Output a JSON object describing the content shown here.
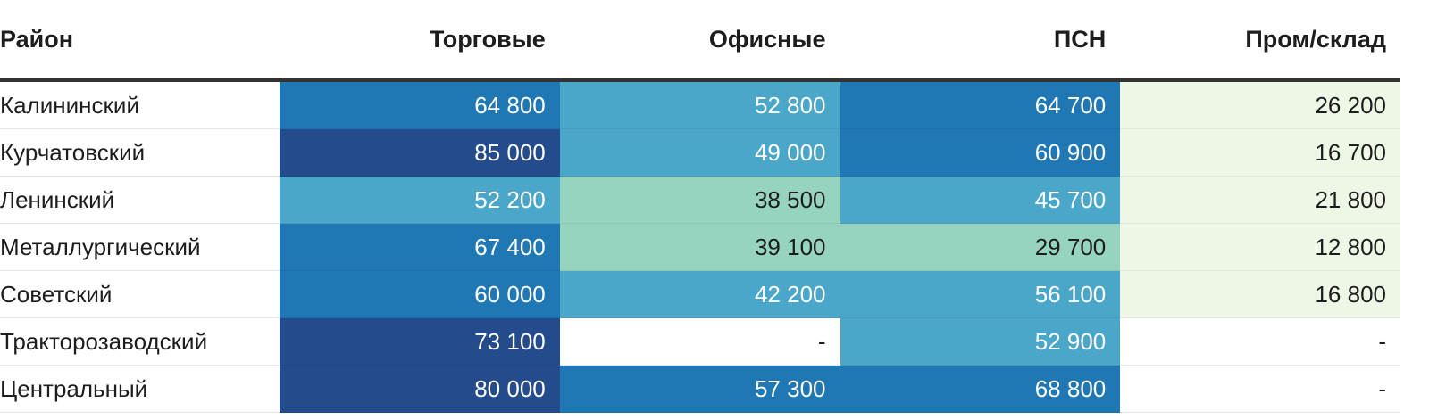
{
  "chart_data": {
    "type": "table",
    "columns": [
      "Район",
      "Торговые",
      "Офисные",
      "ПСН",
      "Пром/склад"
    ],
    "rows": [
      {
        "district": "Калининский",
        "values": [
          "64 800",
          "52 800",
          "64 700",
          "26 200"
        ]
      },
      {
        "district": "Курчатовский",
        "values": [
          "85 000",
          "49 000",
          "60 900",
          "16 700"
        ]
      },
      {
        "district": "Ленинский",
        "values": [
          "52 200",
          "38 500",
          "45 700",
          "21 800"
        ]
      },
      {
        "district": "Металлургический",
        "values": [
          "67 400",
          "39 100",
          "29 700",
          "12 800"
        ]
      },
      {
        "district": "Советский",
        "values": [
          "60 000",
          "42 200",
          "56 100",
          "16 800"
        ]
      },
      {
        "district": "Тракторозаводский",
        "values": [
          "73 100",
          "-",
          "52 900",
          "-"
        ]
      },
      {
        "district": "Центральный",
        "values": [
          "80 000",
          "57 300",
          "68 800",
          "-"
        ]
      }
    ],
    "color_scale": [
      {
        "min": 70000,
        "color": "#244b8c",
        "text": "#ffffff"
      },
      {
        "min": 57000,
        "color": "#1f78b4",
        "text": "#ffffff"
      },
      {
        "min": 40000,
        "color": "#4ba7ca",
        "text": "#ffffff"
      },
      {
        "min": 27000,
        "color": "#97d4c0",
        "text": "#1d1d1d"
      },
      {
        "min": 0,
        "color": "#eef7e6",
        "text": "#1d1d1d"
      }
    ],
    "empty_color": "#ffffff"
  }
}
